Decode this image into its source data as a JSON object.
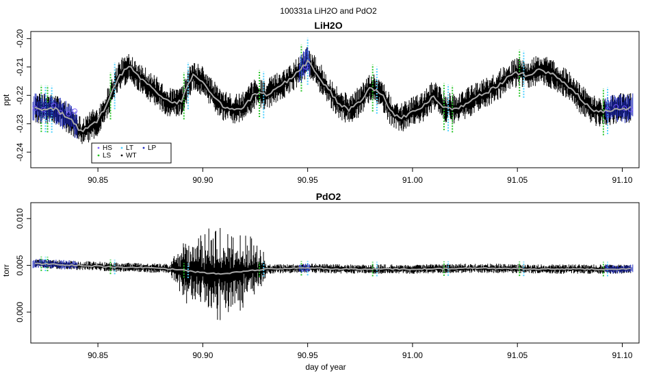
{
  "figure_title": "100331a   LiH2O and PdO2",
  "chart_data": [
    {
      "type": "line",
      "title": "LiH2O",
      "xlabel": "",
      "ylabel": "ppt",
      "xlim": [
        90.818,
        91.108
      ],
      "ylim": [
        -0.2455,
        -0.1975
      ],
      "x_ticks": [
        90.85,
        90.9,
        90.95,
        91.0,
        91.05,
        91.1
      ],
      "x_tick_labels": [
        "90.85",
        "90.90",
        "90.95",
        "91.00",
        "91.05",
        "91.10"
      ],
      "y_ticks": [
        -0.24,
        -0.23,
        -0.22,
        -0.21,
        -0.2
      ],
      "y_tick_labels": [
        "-0.24",
        "-0.23",
        "-0.22",
        "-0.21",
        "-0.20"
      ],
      "series": [
        {
          "name": "smoothed",
          "color": "#a8a8a8",
          "x": [
            90.82,
            90.83,
            90.838,
            90.842,
            90.85,
            90.855,
            90.86,
            90.865,
            90.875,
            90.885,
            90.89,
            90.895,
            90.9,
            90.905,
            90.91,
            90.915,
            90.92,
            90.925,
            90.93,
            90.94,
            90.945,
            90.95,
            90.955,
            90.96,
            90.965,
            90.97,
            90.975,
            90.98,
            90.985,
            90.99,
            90.995,
            91.0,
            91.005,
            91.01,
            91.015,
            91.02,
            91.03,
            91.04,
            91.045,
            91.05,
            91.055,
            91.06,
            91.065,
            91.07,
            91.075,
            91.08,
            91.085,
            91.09,
            91.095,
            91.1,
            91.104
          ],
          "y": [
            -0.2245,
            -0.225,
            -0.229,
            -0.233,
            -0.229,
            -0.222,
            -0.213,
            -0.21,
            -0.217,
            -0.223,
            -0.222,
            -0.213,
            -0.215,
            -0.22,
            -0.224,
            -0.225,
            -0.224,
            -0.219,
            -0.22,
            -0.215,
            -0.212,
            -0.208,
            -0.213,
            -0.218,
            -0.223,
            -0.225,
            -0.222,
            -0.217,
            -0.219,
            -0.226,
            -0.228,
            -0.226,
            -0.224,
            -0.22,
            -0.224,
            -0.225,
            -0.221,
            -0.217,
            -0.214,
            -0.212,
            -0.213,
            -0.211,
            -0.212,
            -0.214,
            -0.217,
            -0.221,
            -0.225,
            -0.226,
            -0.225,
            -0.2245,
            -0.2245
          ]
        }
      ],
      "noise_amplitude": 0.0075,
      "markers": [
        {
          "name": "LS",
          "color": "#22c422",
          "x": [
            90.823,
            90.826,
            90.856,
            90.891,
            90.927,
            90.947,
            90.981,
            91.015,
            91.019,
            91.051,
            91.091
          ]
        },
        {
          "name": "LT",
          "color": "#4ad0ff",
          "x": [
            90.825,
            90.828,
            90.858,
            90.893,
            90.929,
            90.95,
            90.983,
            91.017,
            91.053,
            91.093
          ]
        },
        {
          "name": "LP",
          "color": "#1f2bbf",
          "x_ranges": [
            [
              90.819,
              90.84
            ],
            [
              90.946,
              90.951
            ],
            [
              91.092,
              91.105
            ]
          ]
        },
        {
          "name": "HS",
          "color": "#7a5cff",
          "x": [
            90.82,
            90.824,
            90.829,
            90.832,
            90.836,
            90.839,
            90.949,
            91.093,
            91.097,
            91.101,
            91.104
          ],
          "y": [
            -0.2245,
            -0.225,
            -0.2235,
            -0.226,
            -0.2265,
            -0.2255,
            -0.21,
            -0.225,
            -0.224,
            -0.2245,
            -0.225
          ]
        }
      ],
      "legend": {
        "placement": "bottom-left",
        "entries": [
          {
            "label": "HS",
            "color": "#7a5cff",
            "symbol": "dot"
          },
          {
            "label": "LT",
            "color": "#4ad0ff",
            "symbol": "dot"
          },
          {
            "label": "LP",
            "color": "#1f2bbf",
            "symbol": "dot"
          },
          {
            "label": "LS",
            "color": "#22c422",
            "symbol": "dot"
          },
          {
            "label": "WT",
            "color": "#000000",
            "symbol": "dot"
          }
        ]
      }
    },
    {
      "type": "line",
      "title": "PdO2",
      "xlabel": "day of year",
      "ylabel": "torr",
      "xlim": [
        90.818,
        91.108
      ],
      "ylim": [
        -0.0033,
        0.0117
      ],
      "x_ticks": [
        90.85,
        90.9,
        90.95,
        91.0,
        91.05,
        91.1
      ],
      "x_tick_labels": [
        "90.85",
        "90.90",
        "90.95",
        "91.00",
        "91.05",
        "91.10"
      ],
      "y_ticks": [
        0.0,
        0.005,
        0.01
      ],
      "y_tick_labels": [
        "0.000",
        "0.005",
        "0.010"
      ],
      "series": [
        {
          "name": "smoothed",
          "color": "#a8a8a8",
          "x": [
            90.82,
            90.84,
            90.86,
            90.88,
            90.89,
            90.9,
            90.91,
            90.92,
            90.93,
            90.95,
            90.97,
            91.0,
            91.03,
            91.06,
            91.09,
            91.104
          ],
          "y": [
            0.0052,
            0.005,
            0.0048,
            0.0047,
            0.0045,
            0.0042,
            0.0041,
            0.0044,
            0.0046,
            0.0047,
            0.0046,
            0.0046,
            0.0047,
            0.0046,
            0.0046,
            0.0046
          ]
        }
      ],
      "noise_amplitude": 0.0007,
      "burst_regions": [
        [
          90.885,
          90.93
        ]
      ],
      "burst_amplitude": 0.0055,
      "markers": [
        {
          "name": "LS",
          "color": "#22c422",
          "x": [
            90.823,
            90.826,
            90.856,
            90.891,
            90.927,
            90.947,
            90.981,
            91.015,
            91.051,
            91.091
          ]
        },
        {
          "name": "LT",
          "color": "#4ad0ff",
          "x": [
            90.825,
            90.858,
            90.893,
            90.929,
            90.95,
            90.983,
            91.017,
            91.053,
            91.093
          ]
        },
        {
          "name": "LP",
          "color": "#1f2bbf",
          "x_ranges": [
            [
              90.819,
              90.84
            ],
            [
              90.946,
              90.951
            ],
            [
              91.092,
              91.105
            ]
          ]
        }
      ]
    }
  ]
}
